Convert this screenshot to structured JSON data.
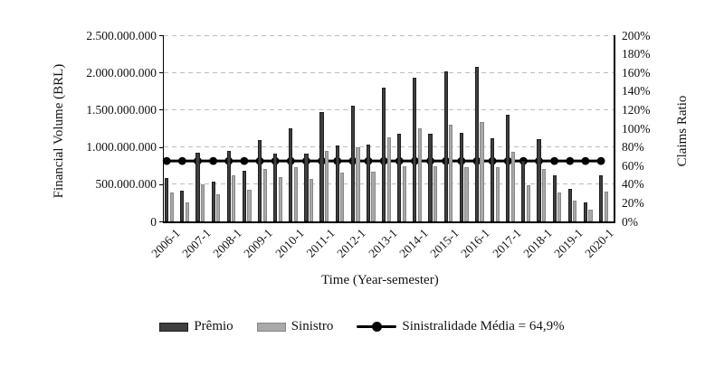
{
  "chart_data": {
    "type": "bar",
    "title": "",
    "xlabel": "Time (Year-semester)",
    "ylabel_left": "Financial Volume (BRL)",
    "ylabel_right": "Claims Ratio",
    "ylim_left": [
      0,
      2500000000
    ],
    "ytick_step_left": 500000000,
    "yticks_left_labels": [
      "2.500.000.000",
      "2.000.000.000",
      "1.500.000.000",
      "1.000.000.000",
      "500.000.000",
      "0"
    ],
    "ylim_right_pct": [
      0,
      200
    ],
    "ytick_step_right_pct": 20,
    "yticks_right_labels": [
      "200%",
      "180%",
      "160%",
      "140%",
      "120%",
      "100%",
      "80%",
      "60%",
      "40%",
      "20%",
      "0%"
    ],
    "grid": "horizontal-dashed",
    "legend_position": "bottom",
    "categories": [
      "2006-1",
      "2006-2",
      "2007-1",
      "2007-2",
      "2008-1",
      "2008-2",
      "2009-1",
      "2009-2",
      "2010-1",
      "2010-2",
      "2011-1",
      "2011-2",
      "2012-1",
      "2012-2",
      "2013-1",
      "2013-2",
      "2014-1",
      "2014-2",
      "2015-1",
      "2015-2",
      "2016-1",
      "2016-2",
      "2017-1",
      "2017-2",
      "2018-1",
      "2018-2",
      "2019-1",
      "2019-2",
      "2020-1"
    ],
    "x_axis_labeled_categories": [
      "2006-1",
      "2007-1",
      "2008-1",
      "2009-1",
      "2010-1",
      "2011-1",
      "2012-1",
      "2013-1",
      "2014-1",
      "2015-1",
      "2016-1",
      "2017-1",
      "2018-1",
      "2019-1",
      "2020-1"
    ],
    "series": [
      {
        "name": "Prêmio",
        "color": "#3f3f3f",
        "border_color": "#1f1f1f",
        "values": [
          580000000,
          415000000,
          920000000,
          540000000,
          945000000,
          680000000,
          1090000000,
          910000000,
          1255000000,
          910000000,
          1465000000,
          1025000000,
          1555000000,
          1035000000,
          1800000000,
          1175000000,
          1935000000,
          1175000000,
          2020000000,
          1185000000,
          2075000000,
          1120000000,
          1430000000,
          810000000,
          1100000000,
          615000000,
          435000000,
          250000000,
          615000000
        ]
      },
      {
        "name": "Sinistro",
        "color": "#a9a9a9",
        "border_color": "#878787",
        "values": [
          385000000,
          260000000,
          500000000,
          365000000,
          615000000,
          430000000,
          705000000,
          595000000,
          730000000,
          565000000,
          945000000,
          660000000,
          1000000000,
          670000000,
          1130000000,
          745000000,
          1245000000,
          735000000,
          1300000000,
          730000000,
          1340000000,
          730000000,
          940000000,
          485000000,
          705000000,
          390000000,
          275000000,
          160000000,
          395000000
        ]
      }
    ],
    "line_series": {
      "name": "Sinistralidade Média = 64,9%",
      "axis": "right",
      "constant_value_pct": 64.9,
      "color": "#000000"
    }
  },
  "styles": {
    "gridline_color": "#bdbdbd",
    "axis_color": "#000000",
    "text_color": "#111111",
    "background": "#ffffff"
  }
}
